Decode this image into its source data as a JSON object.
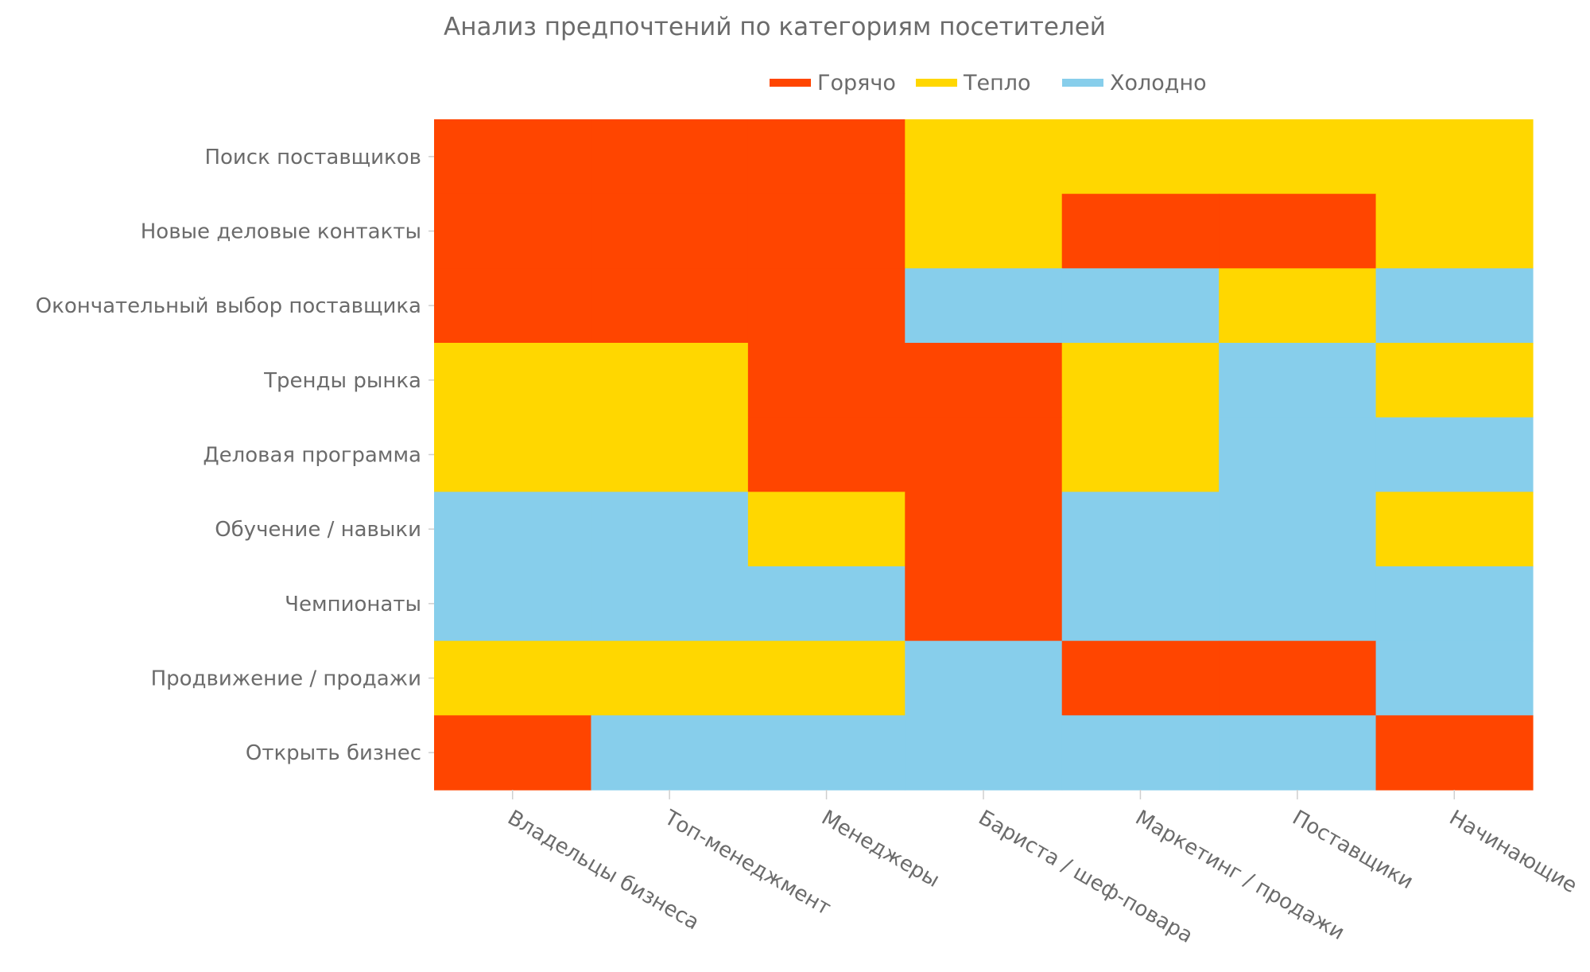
{
  "chart_data": {
    "type": "heatmap",
    "title": "Анализ предпочтений по категориям посетителей",
    "xlabel": "",
    "ylabel": "",
    "x_categories": [
      "Владельцы бизнеса",
      "Топ-менеджмент",
      "Менеджеры",
      "Бариста / шеф-повара",
      "Маркетинг / продажи",
      "Поставщики",
      "Начинающие"
    ],
    "y_categories": [
      "Поиск поставщиков",
      "Новые деловые контакты",
      "Окончательный выбор поставщика",
      "Тренды рынка",
      "Деловая программа",
      "Обучение / навыки",
      "Чемпионаты",
      "Продвижение / продажи",
      "Открыть бизнес"
    ],
    "levels": [
      {
        "key": "hot",
        "label": "Горячо",
        "color": "#FF4500"
      },
      {
        "key": "warm",
        "label": "Тепло",
        "color": "#FFD700"
      },
      {
        "key": "cold",
        "label": "Холодно",
        "color": "#87CEEB"
      }
    ],
    "values": [
      [
        "hot",
        "hot",
        "hot",
        "warm",
        "warm",
        "warm",
        "warm"
      ],
      [
        "hot",
        "hot",
        "hot",
        "warm",
        "hot",
        "hot",
        "warm"
      ],
      [
        "hot",
        "hot",
        "hot",
        "cold",
        "cold",
        "warm",
        "cold"
      ],
      [
        "warm",
        "warm",
        "hot",
        "hot",
        "warm",
        "cold",
        "warm"
      ],
      [
        "warm",
        "warm",
        "hot",
        "hot",
        "warm",
        "cold",
        "cold"
      ],
      [
        "cold",
        "cold",
        "warm",
        "hot",
        "cold",
        "cold",
        "warm"
      ],
      [
        "cold",
        "cold",
        "cold",
        "hot",
        "cold",
        "cold",
        "cold"
      ],
      [
        "warm",
        "warm",
        "warm",
        "cold",
        "hot",
        "hot",
        "cold"
      ],
      [
        "hot",
        "cold",
        "cold",
        "cold",
        "cold",
        "cold",
        "hot"
      ]
    ],
    "legend_position": "top-center",
    "grid": false
  }
}
